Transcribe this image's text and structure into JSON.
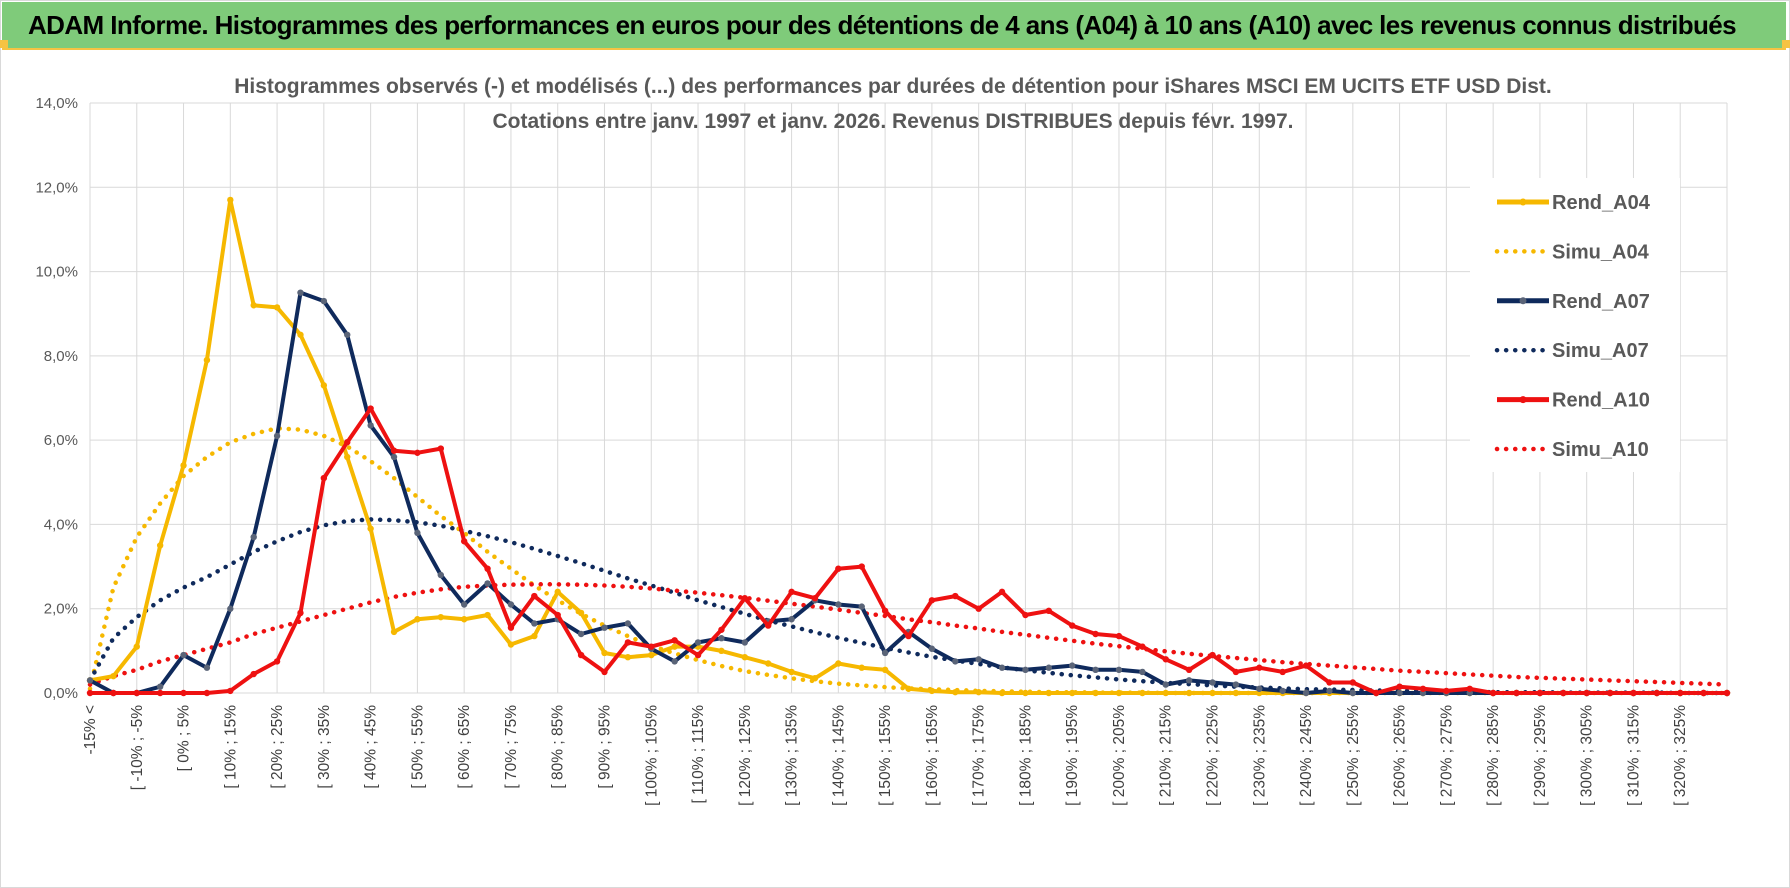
{
  "header": {
    "title": "ADAM Informe. Histogrammes des performances en euros pour des détentions de 4 ans (A04) à 10 ans (A10) avec les revenus connus distribués"
  },
  "colors": {
    "banner": "#7fcb7a",
    "accent": "#f6c343",
    "A04": "#f6b800",
    "A07": "#0f2a5c",
    "A10": "#ee1111"
  },
  "chart_data": {
    "type": "line",
    "title_lines": [
      "Histogrammes observés (-) et modélisés (...) des performances par durées de détention pour iShares MSCI EM UCITS ETF USD Dist.",
      "Cotations entre janv. 1997 et janv. 2026. Revenus DISTRIBUES depuis févr. 1997."
    ],
    "y_ticks": [
      "0,0%",
      "2,0%",
      "4,0%",
      "6,0%",
      "8,0%",
      "10,0%",
      "12,0%",
      "14,0%"
    ],
    "ylim": [
      0,
      14
    ],
    "grid": true,
    "legend_position": "right",
    "x_labels": [
      "-15% <",
      "",
      "[ -10% ; -5%",
      "",
      "[ 0% ; 5%",
      "",
      "[ 10% ; 15%",
      "",
      "[ 20% ; 25%",
      "",
      "[ 30% ; 35%",
      "",
      "[ 40% ; 45%",
      "",
      "[ 50% ; 55%",
      "",
      "[ 60% ; 65%",
      "",
      "[ 70% ; 75%",
      "",
      "[ 80% ; 85%",
      "",
      "[ 90% ; 95%",
      "",
      "[ 100% ; 105%",
      "",
      "[ 110% ; 115%",
      "",
      "[ 120% ; 125%",
      "",
      "[ 130% ; 135%",
      "",
      "[ 140% ; 145%",
      "",
      "[ 150% ; 155%",
      "",
      "[ 160% ; 165%",
      "",
      "[ 170% ; 175%",
      "",
      "[ 180% ; 185%",
      "",
      "[ 190% ; 195%",
      "",
      "[ 200% ; 205%",
      "",
      "[ 210% ; 215%",
      "",
      "[ 220% ; 225%",
      "",
      "[ 230% ; 235%",
      "",
      "[ 240% ; 245%",
      "",
      "[ 250% ; 255%",
      "",
      "[ 260% ; 265%",
      "",
      "[ 270% ; 275%",
      "",
      "[ 280% ; 285%",
      "",
      "[ 290% ; 295%",
      "",
      "[ 300% ; 305%",
      "",
      "[ 310% ; 315%",
      "",
      "[ 320% ; 325%",
      ""
    ],
    "series": [
      {
        "name": "Rend_A04",
        "style": "solid",
        "color": "#f6b800",
        "values": [
          0.3,
          0.4,
          1.1,
          3.5,
          5.4,
          7.9,
          11.7,
          9.2,
          9.15,
          8.5,
          7.3,
          5.6,
          3.9,
          1.45,
          1.75,
          1.8,
          1.75,
          1.85,
          1.15,
          1.35,
          2.4,
          1.9,
          0.95,
          0.85,
          0.9,
          1.1,
          1.1,
          1.0,
          0.85,
          0.7,
          0.5,
          0.35,
          0.7,
          0.6,
          0.55,
          0.1,
          0.05,
          0.02,
          0.02,
          0,
          0,
          0,
          0,
          0,
          0,
          0,
          0,
          0,
          0,
          0,
          0,
          0,
          0,
          0,
          0,
          0,
          0,
          0,
          0,
          0,
          0,
          0,
          0,
          0,
          0,
          0,
          0,
          0,
          0,
          0,
          0
        ]
      },
      {
        "name": "Simu_A04",
        "style": "dotted",
        "color": "#f6b800",
        "values": [
          0.1,
          2.5,
          3.7,
          4.5,
          5.15,
          5.6,
          5.95,
          6.15,
          6.28,
          6.25,
          6.1,
          5.85,
          5.5,
          5.1,
          4.65,
          4.2,
          3.8,
          3.35,
          2.95,
          2.55,
          2.2,
          1.88,
          1.6,
          1.35,
          1.12,
          0.94,
          0.78,
          0.64,
          0.52,
          0.43,
          0.35,
          0.28,
          0.22,
          0.18,
          0.14,
          0.11,
          0.09,
          0.07,
          0.05,
          0.04,
          0.03,
          0.02,
          0.02,
          0.01,
          0.01,
          0.01,
          0,
          0,
          0,
          0,
          0,
          0,
          0,
          0,
          0,
          0,
          0,
          0,
          0,
          0,
          0,
          0,
          0,
          0,
          0,
          0,
          0,
          0,
          0,
          0,
          0
        ]
      },
      {
        "name": "Rend_A07",
        "style": "solid",
        "color": "#0f2a5c",
        "values": [
          0.3,
          0,
          0,
          0.15,
          0.9,
          0.6,
          2.0,
          3.7,
          6.1,
          9.5,
          9.3,
          8.5,
          6.35,
          5.6,
          3.8,
          2.8,
          2.1,
          2.6,
          2.1,
          1.65,
          1.75,
          1.4,
          1.55,
          1.65,
          1.05,
          0.75,
          1.2,
          1.3,
          1.2,
          1.7,
          1.75,
          2.2,
          2.1,
          2.05,
          0.95,
          1.45,
          1.05,
          0.75,
          0.8,
          0.6,
          0.55,
          0.6,
          0.65,
          0.55,
          0.55,
          0.5,
          0.2,
          0.3,
          0.25,
          0.2,
          0.1,
          0.05,
          0,
          0.05,
          0,
          0,
          0,
          0,
          0,
          0,
          0,
          0,
          0,
          0,
          0,
          0,
          0,
          0,
          0,
          0,
          0
        ]
      },
      {
        "name": "Simu_A07",
        "style": "dotted",
        "color": "#0f2a5c",
        "values": [
          0.3,
          1.3,
          1.8,
          2.2,
          2.5,
          2.75,
          3.05,
          3.35,
          3.6,
          3.82,
          3.98,
          4.08,
          4.12,
          4.1,
          4.05,
          3.97,
          3.85,
          3.72,
          3.58,
          3.42,
          3.25,
          3.08,
          2.9,
          2.72,
          2.55,
          2.38,
          2.2,
          2.04,
          1.88,
          1.72,
          1.58,
          1.44,
          1.31,
          1.19,
          1.07,
          0.96,
          0.86,
          0.77,
          0.69,
          0.61,
          0.54,
          0.48,
          0.42,
          0.37,
          0.32,
          0.28,
          0.24,
          0.21,
          0.18,
          0.15,
          0.13,
          0.11,
          0.09,
          0.08,
          0.07,
          0.06,
          0.05,
          0.04,
          0.03,
          0.03,
          0.02,
          0.02,
          0.02,
          0.01,
          0.01,
          0.01,
          0.01,
          0.01,
          0,
          0,
          0
        ]
      },
      {
        "name": "Rend_A10",
        "style": "solid",
        "color": "#ee1111",
        "values": [
          0,
          0,
          0,
          0,
          0,
          0,
          0.05,
          0.45,
          0.75,
          1.9,
          5.1,
          5.95,
          6.75,
          5.75,
          5.7,
          5.8,
          3.6,
          2.95,
          1.55,
          2.3,
          1.85,
          0.9,
          0.5,
          1.2,
          1.1,
          1.25,
          0.9,
          1.5,
          2.25,
          1.6,
          2.4,
          2.25,
          2.95,
          3.0,
          1.95,
          1.35,
          2.2,
          2.3,
          2.0,
          2.4,
          1.85,
          1.95,
          1.6,
          1.4,
          1.35,
          1.1,
          0.8,
          0.55,
          0.9,
          0.5,
          0.6,
          0.5,
          0.65,
          0.25,
          0.25,
          0,
          0.15,
          0.1,
          0.05,
          0.1,
          0,
          0,
          0,
          0,
          0,
          0,
          0,
          0,
          0,
          0,
          0
        ]
      },
      {
        "name": "Simu_A10",
        "style": "dotted",
        "color": "#ee1111",
        "values": [
          0.2,
          0.4,
          0.55,
          0.75,
          0.9,
          1.05,
          1.2,
          1.4,
          1.55,
          1.7,
          1.85,
          2.0,
          2.15,
          2.28,
          2.38,
          2.46,
          2.52,
          2.55,
          2.57,
          2.58,
          2.58,
          2.57,
          2.55,
          2.52,
          2.48,
          2.43,
          2.38,
          2.32,
          2.26,
          2.19,
          2.12,
          2.05,
          1.98,
          1.9,
          1.83,
          1.75,
          1.68,
          1.6,
          1.53,
          1.45,
          1.38,
          1.31,
          1.24,
          1.17,
          1.11,
          1.05,
          0.99,
          0.93,
          0.88,
          0.83,
          0.78,
          0.73,
          0.69,
          0.65,
          0.61,
          0.57,
          0.53,
          0.5,
          0.47,
          0.44,
          0.41,
          0.38,
          0.36,
          0.34,
          0.32,
          0.3,
          0.28,
          0.26,
          0.24,
          0.22,
          0.2
        ]
      }
    ]
  }
}
